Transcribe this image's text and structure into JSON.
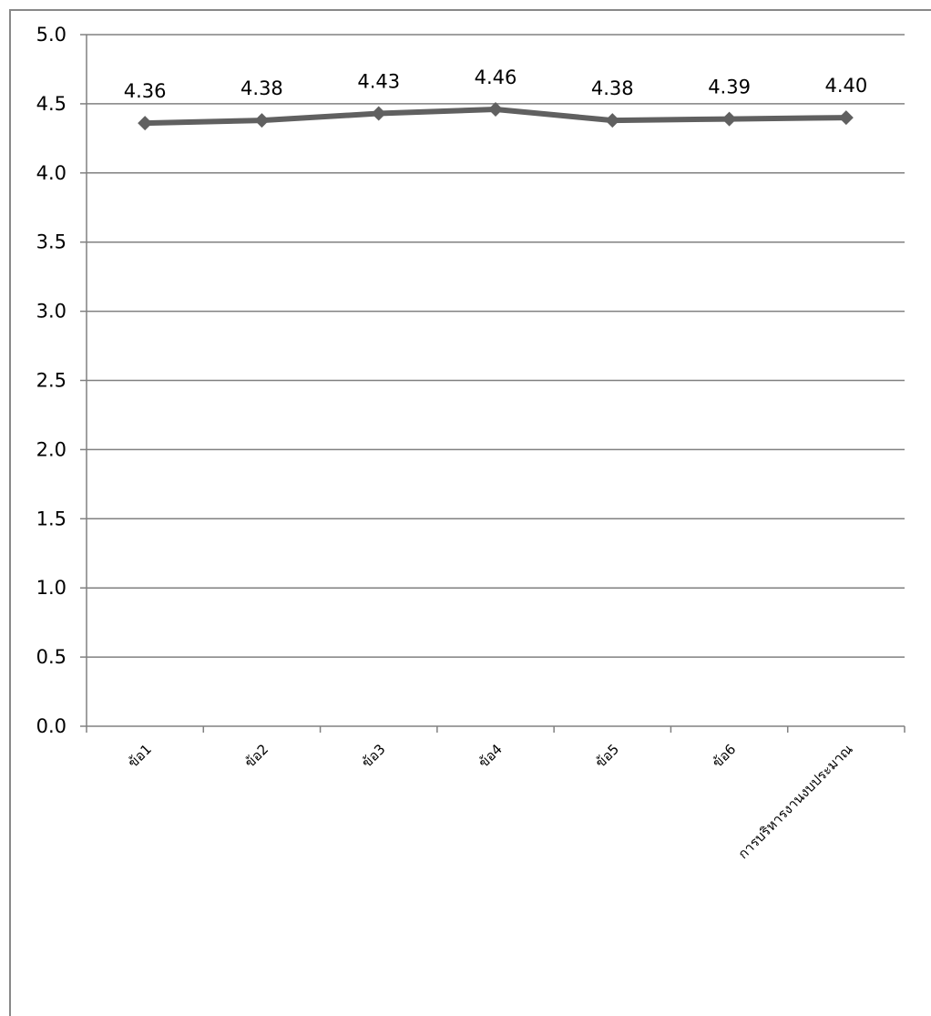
{
  "chart_data": {
    "type": "line",
    "title": "",
    "xlabel": "",
    "ylabel": "",
    "categories": [
      "ข้อ1",
      "ข้อ2",
      "ข้อ3",
      "ข้อ4",
      "ข้อ5",
      "ข้อ6",
      "การบริหารงานงบประมาณ"
    ],
    "series": [
      {
        "values": [
          4.36,
          4.38,
          4.43,
          4.46,
          4.38,
          4.39,
          4.4
        ]
      }
    ],
    "data_labels": [
      "4.36",
      "4.38",
      "4.43",
      "4.46",
      "4.38",
      "4.39",
      "4.40"
    ],
    "ylim": [
      0,
      5
    ],
    "ytick_labels": [
      "0.0",
      "0.5",
      "1.0",
      "1.5",
      "2.0",
      "2.5",
      "3.0",
      "3.5",
      "4.0",
      "4.5",
      "5.0"
    ],
    "grid": true,
    "legend": "none",
    "colors": {
      "line": "#606060",
      "grid": "#808080",
      "axis": "#808080"
    }
  }
}
